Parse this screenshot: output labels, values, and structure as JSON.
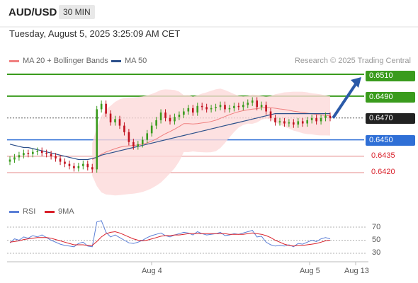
{
  "header": {
    "symbol": "AUD/USD",
    "timeframe": "30 MIN"
  },
  "datetime": "Tuesday, August 5, 2025 3:25:09 AM CET",
  "legend": {
    "ma20": {
      "label": "MA 20 + Bollinger Bands",
      "color": "#f08080"
    },
    "ma50": {
      "label": "MA 50",
      "color": "#2b4f8a"
    },
    "rsi": {
      "label": "RSI",
      "color": "#5b7fd6"
    },
    "ma9": {
      "label": "9MA",
      "color": "#d9202a"
    }
  },
  "research": "Research © 2025 Trading Central",
  "levels": [
    {
      "value": "0.6510",
      "kind": "resistance",
      "color": "#3a9b1d"
    },
    {
      "value": "0.6490",
      "kind": "resistance",
      "color": "#3a9b1d"
    },
    {
      "value": "0.6470",
      "kind": "current",
      "color": "#222222"
    },
    {
      "value": "0.6450",
      "kind": "pivot",
      "color": "#2f6fd6"
    },
    {
      "value": "0.6435",
      "kind": "support",
      "color": "#d9202a"
    },
    {
      "value": "0.6420",
      "kind": "support",
      "color": "#d9202a"
    }
  ],
  "rsi_axis": [
    "70",
    "50",
    "30"
  ],
  "x_ticks": [
    "Aug 4",
    "Aug 5",
    "Aug 13"
  ],
  "chart_data": {
    "type": "line",
    "title": "AUD/USD",
    "ylim": [
      0.6405,
      0.6525
    ],
    "price_close": [
      0.6432,
      0.6434,
      0.6436,
      0.6438,
      0.6437,
      0.6439,
      0.644,
      0.6438,
      0.6437,
      0.6435,
      0.6433,
      0.643,
      0.6428,
      0.6426,
      0.6424,
      0.6426,
      0.6428,
      0.6425,
      0.6423,
      0.6478,
      0.6483,
      0.6474,
      0.6466,
      0.6469,
      0.6463,
      0.6457,
      0.6448,
      0.6444,
      0.6446,
      0.645,
      0.6456,
      0.6463,
      0.6468,
      0.6475,
      0.647,
      0.6467,
      0.6471,
      0.6473,
      0.6476,
      0.6479,
      0.6475,
      0.6481,
      0.648,
      0.6478,
      0.6479,
      0.648,
      0.6482,
      0.6478,
      0.6479,
      0.6481,
      0.648,
      0.6482,
      0.6484,
      0.6486,
      0.648,
      0.6482,
      0.6476,
      0.647,
      0.6466,
      0.6467,
      0.6465,
      0.6466,
      0.6464,
      0.6467,
      0.6465,
      0.6468,
      0.647,
      0.6467,
      0.647,
      0.6472,
      0.647
    ],
    "ma50": [
      0.6446,
      0.6445,
      0.6444,
      0.6443,
      0.6443,
      0.6442,
      0.6441,
      0.644,
      0.6439,
      0.6438,
      0.6437,
      0.6436,
      0.6435,
      0.6434,
      0.6433,
      0.6432,
      0.6432,
      0.6432,
      0.6433,
      0.6434,
      0.6436,
      0.6437,
      0.6438,
      0.6439,
      0.644,
      0.6441,
      0.6442,
      0.6443,
      0.6444,
      0.6445,
      0.6446,
      0.6447,
      0.6448,
      0.6449,
      0.645,
      0.6451,
      0.6452,
      0.6453,
      0.6454,
      0.6455,
      0.6456,
      0.6457,
      0.6458,
      0.6459,
      0.646,
      0.6461,
      0.6462,
      0.6463,
      0.6464,
      0.6465,
      0.6466,
      0.6467,
      0.6468,
      0.6469,
      0.647,
      0.6471,
      0.6472,
      0.6473,
      0.6474,
      0.6474,
      0.6474,
      0.6474,
      0.6474,
      0.6474,
      0.6474,
      0.6474,
      0.6474,
      0.6474,
      0.6474,
      0.6474,
      0.6474
    ],
    "rsi": [
      46,
      52,
      50,
      55,
      53,
      57,
      55,
      58,
      54,
      50,
      47,
      44,
      42,
      41,
      40,
      45,
      47,
      41,
      40,
      78,
      80,
      62,
      55,
      58,
      54,
      50,
      46,
      45,
      47,
      50,
      54,
      57,
      59,
      61,
      57,
      55,
      58,
      60,
      62,
      61,
      58,
      63,
      60,
      58,
      59,
      60,
      62,
      57,
      58,
      60,
      59,
      61,
      63,
      65,
      55,
      56,
      47,
      43,
      41,
      42,
      41,
      43,
      40,
      45,
      44,
      47,
      50,
      48,
      52,
      54,
      52
    ],
    "rsi_ma": [
      47,
      48,
      49,
      51,
      52,
      53,
      54,
      54,
      54,
      53,
      51,
      49,
      47,
      45,
      43,
      43,
      43,
      42,
      42,
      48,
      55,
      60,
      62,
      63,
      61,
      58,
      55,
      52,
      50,
      49,
      50,
      52,
      54,
      56,
      57,
      57,
      58,
      58,
      59,
      60,
      60,
      60,
      60,
      60,
      60,
      60,
      60,
      60,
      59,
      59,
      59,
      59,
      60,
      61,
      60,
      59,
      57,
      54,
      50,
      47,
      44,
      42,
      41,
      42,
      42,
      43,
      44,
      45,
      47,
      49,
      50
    ],
    "forecast": {
      "from": 0.647,
      "to": 0.651
    }
  }
}
